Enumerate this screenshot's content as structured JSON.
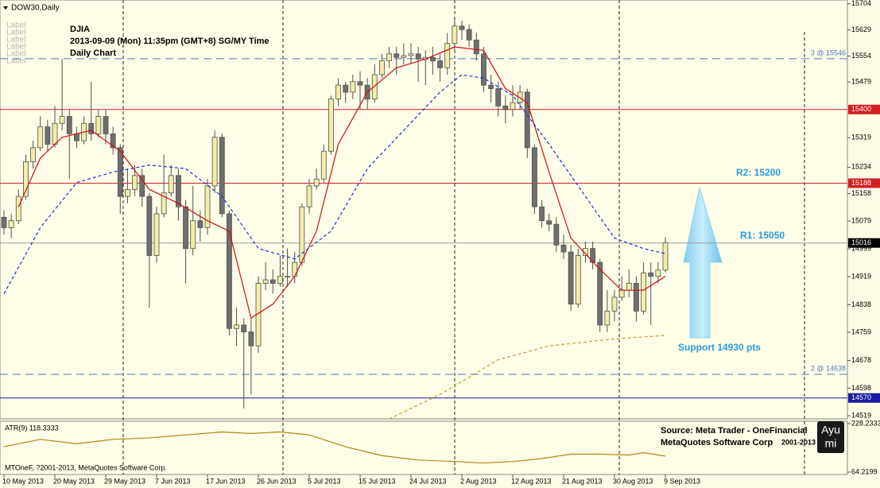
{
  "chart_data": {
    "type": "candlestick",
    "symbol": "DOW30,Daily",
    "info": [
      "DJIA",
      "2013-09-09 (Mon) 11:35pm (GMT+8) SG/MY Time",
      "Daily Chart"
    ],
    "object_labels": [
      "Label",
      "Label",
      "Label",
      "Label",
      "Label",
      "Label"
    ],
    "annotations": [
      "R2: 15200",
      "R1: 15050",
      "Support 14930 pts"
    ],
    "source": [
      "Source: Meta Trader - OneFinancial",
      "MetaQuotes Software Corp",
      "2001-2013"
    ],
    "logo": [
      "Ayu",
      "mi"
    ],
    "copyright": "MTOneF, ?2001-2013, MetaQuotes Software Corp.",
    "categories": [
      "10 May 2013",
      null,
      null,
      null,
      null,
      null,
      null,
      "20 May 2013",
      null,
      null,
      null,
      null,
      null,
      null,
      "29 May 2013",
      null,
      null,
      null,
      null,
      null,
      null,
      "7 Jun 2013",
      null,
      null,
      null,
      null,
      null,
      null,
      "17 Jun 2013",
      null,
      null,
      null,
      null,
      null,
      null,
      "26 Jun 2013",
      null,
      null,
      null,
      null,
      null,
      null,
      "5 Jul 2013",
      null,
      null,
      null,
      null,
      null,
      null,
      "15 Jul 2013",
      null,
      null,
      null,
      null,
      null,
      null,
      "24 Jul 2013",
      null,
      null,
      null,
      null,
      null,
      null,
      "2 Aug 2013",
      null,
      null,
      null,
      null,
      null,
      null,
      "12 Aug 2013",
      null,
      null,
      null,
      null,
      null,
      null,
      "21 Aug 2013",
      null,
      null,
      null,
      null,
      null,
      null,
      "30 Aug 2013",
      null,
      null,
      null,
      null,
      null,
      null,
      "9 Sep 2013"
    ],
    "open": [
      15090,
      15060,
      15080,
      15150,
      15250,
      15290,
      15350,
      15300,
      15360,
      15380,
      15330,
      15310,
      15360,
      15330,
      15380,
      15330,
      15290,
      15150,
      15170,
      15210,
      15150,
      14980,
      15100,
      15160,
      15210,
      15120,
      15000,
      15080,
      15060,
      15180,
      15320,
      15100,
      14770,
      14780,
      14760,
      14720,
      14900,
      14910,
      14900,
      14920,
      14920,
      14960,
      15120,
      15180,
      15200,
      15280,
      15430,
      15470,
      15450,
      15480,
      15470,
      15430,
      15500,
      15540,
      15560,
      15550,
      15555,
      15560,
      15545,
      15550,
      15540,
      15520,
      15590,
      15640,
      15630,
      15600,
      15560,
      15470,
      15460,
      15410,
      15400,
      15420,
      15450,
      15290,
      15120,
      15080,
      15070,
      15010,
      14990,
      14840,
      14980,
      15000,
      14960,
      14780,
      14820,
      14860,
      14880,
      14900,
      14820,
      14930,
      14920,
      14938
    ],
    "high": [
      15110,
      15100,
      15170,
      15270,
      15310,
      15380,
      15370,
      15410,
      15545,
      15400,
      15350,
      15380,
      15480,
      15400,
      15400,
      15350,
      15300,
      15230,
      15240,
      15230,
      15160,
      15120,
      15270,
      15240,
      15230,
      15140,
      15180,
      15110,
      15200,
      15340,
      15330,
      15110,
      14830,
      14800,
      14800,
      14920,
      14960,
      14940,
      14980,
      15000,
      14990,
      15130,
      15200,
      15230,
      15300,
      15440,
      15490,
      15480,
      15500,
      15510,
      15490,
      15530,
      15560,
      15580,
      15580,
      15590,
      15590,
      15580,
      15570,
      15580,
      15560,
      15620,
      15658,
      15655,
      15645,
      15620,
      15580,
      15500,
      15480,
      15440,
      15470,
      15470,
      15460,
      15300,
      15140,
      15100,
      15090,
      15040,
      15010,
      15000,
      15020,
      15020,
      14970,
      14880,
      14880,
      14920,
      14940,
      14920,
      14960,
      14960,
      14960,
      15033
    ],
    "low": [
      15040,
      15030,
      15070,
      15140,
      15230,
      15280,
      15280,
      15290,
      15340,
      15200,
      15290,
      15300,
      15310,
      15320,
      15300,
      15270,
      15100,
      15130,
      15150,
      15120,
      14830,
      14960,
      15090,
      15150,
      15080,
      14900,
      14980,
      15020,
      15040,
      15160,
      15090,
      14750,
      14720,
      14540,
      14580,
      14700,
      14880,
      14870,
      14890,
      14890,
      14900,
      14950,
      15100,
      15170,
      15190,
      15270,
      15410,
      15420,
      15430,
      15400,
      15400,
      15420,
      15490,
      15520,
      15500,
      15530,
      15530,
      15480,
      15470,
      15500,
      15480,
      15500,
      15570,
      15600,
      15580,
      15540,
      15450,
      15420,
      15380,
      15360,
      15380,
      15400,
      15260,
      15100,
      15060,
      15050,
      14990,
      14970,
      14820,
      14830,
      14960,
      14940,
      14760,
      14760,
      14790,
      14850,
      14860,
      14790,
      14810,
      14780,
      14900,
      14931
    ],
    "close": [
      15060,
      15080,
      15150,
      15250,
      15290,
      15350,
      15300,
      15360,
      15380,
      15330,
      15310,
      15360,
      15330,
      15380,
      15330,
      15290,
      15150,
      15170,
      15210,
      15150,
      14980,
      15100,
      15160,
      15210,
      15120,
      15000,
      15080,
      15060,
      15180,
      15320,
      15100,
      14770,
      14780,
      14760,
      14720,
      14900,
      14910,
      14900,
      14920,
      14920,
      14960,
      15120,
      15180,
      15200,
      15280,
      15430,
      15470,
      15450,
      15480,
      15470,
      15430,
      15500,
      15540,
      15560,
      15550,
      15555,
      15560,
      15545,
      15550,
      15540,
      15520,
      15590,
      15640,
      15630,
      15600,
      15560,
      15470,
      15460,
      15410,
      15400,
      15420,
      15450,
      15290,
      15120,
      15080,
      15070,
      15010,
      14990,
      14840,
      14980,
      15000,
      14960,
      14780,
      14820,
      14860,
      14880,
      14900,
      14820,
      14930,
      14920,
      14938,
      15016
    ],
    "up_color": "#f3eda6",
    "down_color": "#6f6f6f",
    "wick_color": "#505050",
    "overlays": [
      {
        "color": "#d01010",
        "dash": false,
        "x": [
          2,
          5,
          8,
          12,
          16,
          20,
          24,
          28,
          31,
          34,
          37,
          40,
          43,
          46,
          50,
          54,
          58,
          62,
          66,
          69,
          72,
          75,
          78,
          82,
          85,
          88,
          91
        ],
        "values": [
          15120,
          15260,
          15320,
          15340,
          15280,
          15170,
          15130,
          15080,
          15050,
          14800,
          14840,
          14920,
          15050,
          15300,
          15450,
          15520,
          15545,
          15580,
          15570,
          15460,
          15420,
          15220,
          15030,
          14940,
          14880,
          14880,
          14920
        ]
      },
      {
        "color": "#1a2fd0",
        "dash": true,
        "x": [
          0,
          5,
          10,
          15,
          20,
          25,
          30,
          35,
          40,
          45,
          50,
          55,
          60,
          63,
          66,
          70,
          75,
          80,
          84,
          88,
          91
        ],
        "values": [
          14870,
          15060,
          15190,
          15220,
          15240,
          15230,
          15150,
          15000,
          14970,
          15050,
          15230,
          15340,
          15450,
          15500,
          15490,
          15440,
          15300,
          15150,
          15030,
          15000,
          14985
        ]
      },
      {
        "color": "#c8a030",
        "dash": true,
        "x": [
          53,
          60,
          68,
          75,
          84,
          91
        ],
        "values": [
          14510,
          14580,
          14680,
          14720,
          14740,
          14750
        ]
      }
    ],
    "levels": [
      {
        "value": 15546,
        "color": "#5078c0",
        "dash": true,
        "text": "3 @ 15546"
      },
      {
        "value": 15400,
        "color": "#d02020",
        "dash": false,
        "boxed": true
      },
      {
        "value": 15188,
        "color": "#d02020",
        "dash": false,
        "boxed": true
      },
      {
        "value": 15016,
        "color": "#a0a0a0",
        "dash": false,
        "boxed": true,
        "box_color": "#000000"
      },
      {
        "value": 14638,
        "color": "#5078c0",
        "dash": true,
        "text": "2 @ 14638"
      },
      {
        "value": 14570,
        "color": "#1a1aa0",
        "dash": false,
        "boxed": true
      }
    ],
    "ylim": [
      14510,
      15715
    ],
    "yticks": [
      15704,
      15629,
      15554,
      15479,
      15319,
      15234,
      15158,
      15079,
      14999,
      14919,
      14838,
      14759,
      14678,
      14598,
      14519
    ],
    "indicator": {
      "title": "ATR(9) 118.3333",
      "color": "#b8860b",
      "ylim": [
        64.2199,
        228.2333
      ],
      "yticks": [
        228.2333,
        64.2199
      ],
      "x": [
        0,
        5,
        10,
        15,
        20,
        25,
        30,
        34,
        38,
        42,
        47,
        52,
        57,
        62,
        66,
        70,
        74,
        78,
        82,
        86,
        88,
        91
      ],
      "values": [
        150,
        175,
        160,
        175,
        180,
        190,
        200,
        195,
        200,
        190,
        150,
        120,
        105,
        100,
        95,
        100,
        110,
        125,
        125,
        122,
        130,
        118.3333
      ]
    }
  }
}
